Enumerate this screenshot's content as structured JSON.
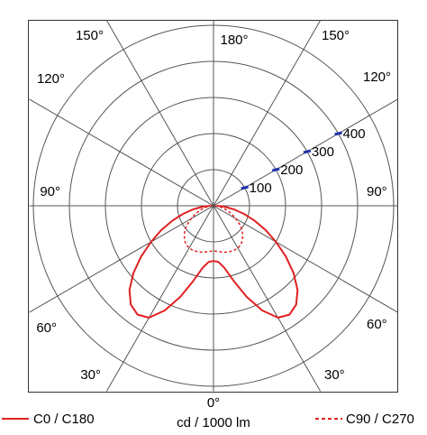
{
  "chart_data": {
    "type": "polar",
    "unit_label": "cd / 1000 lm",
    "radial_ticks": [
      100,
      200,
      300,
      400
    ],
    "radial_tick_color": "#2233aa",
    "rmax": 500,
    "angle_labels": [
      {
        "angle": 0,
        "text": "0°"
      },
      {
        "angle": 30,
        "text": "30°"
      },
      {
        "angle": -30,
        "text": "30°"
      },
      {
        "angle": 60,
        "text": "60°"
      },
      {
        "angle": -60,
        "text": "60°"
      },
      {
        "angle": 90,
        "text": "90°"
      },
      {
        "angle": -90,
        "text": "90°"
      },
      {
        "angle": 120,
        "text": "120°"
      },
      {
        "angle": -120,
        "text": "120°"
      },
      {
        "angle": 150,
        "text": "150°"
      },
      {
        "angle": -150,
        "text": "150°"
      },
      {
        "angle": 180,
        "text": "180°"
      }
    ],
    "series": [
      {
        "name": "C0 / C180",
        "color": "#e02020",
        "style": "solid",
        "angles": [
          0,
          5,
          10,
          15,
          20,
          25,
          30,
          35,
          40,
          45,
          50,
          55,
          60,
          65,
          70,
          75,
          80,
          85,
          90
        ],
        "values": [
          153,
          156,
          175,
          215,
          268,
          320,
          358,
          368,
          357,
          330,
          290,
          245,
          200,
          160,
          122,
          88,
          58,
          30,
          10
        ]
      },
      {
        "name": "C90 / C270",
        "color": "#e02020",
        "style": "dashed",
        "angles": [
          0,
          5,
          10,
          15,
          20,
          25,
          30,
          35,
          40,
          45,
          50,
          55,
          60,
          65,
          70,
          75,
          80,
          85,
          90
        ],
        "values": [
          125,
          127,
          130,
          133,
          135,
          136,
          135,
          132,
          125,
          115,
          103,
          88,
          72,
          57,
          43,
          30,
          19,
          10,
          3
        ]
      }
    ]
  }
}
